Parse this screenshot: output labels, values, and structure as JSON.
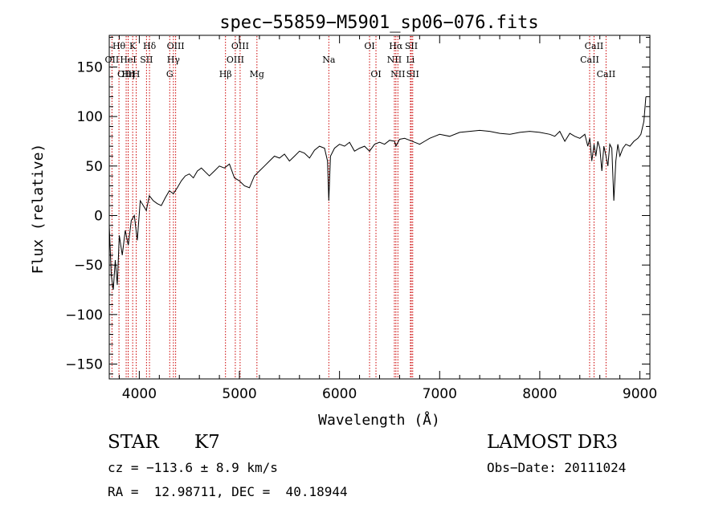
{
  "chart_data": {
    "type": "line",
    "title": "spec−55859−M5901_sp06−076.fits",
    "xlabel": "Wavelength (Å)",
    "ylabel": "Flux (relative)",
    "xlim": [
      3700,
      9100
    ],
    "ylim": [
      -165,
      182
    ],
    "xticks": [
      4000,
      5000,
      6000,
      7000,
      8000,
      9000
    ],
    "xticklabels": [
      "4000",
      "5000",
      "6000",
      "7000",
      "8000",
      "9000"
    ],
    "yticks": [
      -150,
      -100,
      -50,
      0,
      50,
      100,
      150
    ],
    "yticklabels": [
      "−150",
      "−100",
      "−50",
      "0",
      "50",
      "100",
      "150"
    ],
    "series": [
      {
        "name": "flux",
        "x": [
          3700,
          3720,
          3740,
          3760,
          3780,
          3800,
          3830,
          3860,
          3890,
          3920,
          3950,
          3980,
          4010,
          4040,
          4070,
          4100,
          4140,
          4180,
          4220,
          4260,
          4300,
          4340,
          4380,
          4420,
          4460,
          4500,
          4540,
          4580,
          4620,
          4660,
          4700,
          4750,
          4800,
          4850,
          4900,
          4950,
          5000,
          5050,
          5100,
          5150,
          5200,
          5250,
          5300,
          5350,
          5400,
          5450,
          5500,
          5550,
          5600,
          5650,
          5700,
          5750,
          5800,
          5850,
          5880,
          5893,
          5910,
          5950,
          6000,
          6050,
          6100,
          6150,
          6200,
          6250,
          6300,
          6350,
          6400,
          6450,
          6500,
          6550,
          6563,
          6600,
          6650,
          6700,
          6750,
          6800,
          6850,
          6900,
          6950,
          7000,
          7100,
          7200,
          7300,
          7400,
          7500,
          7600,
          7700,
          7800,
          7900,
          8000,
          8100,
          8150,
          8200,
          8250,
          8300,
          8350,
          8400,
          8450,
          8480,
          8500,
          8520,
          8542,
          8560,
          8580,
          8600,
          8620,
          8640,
          8662,
          8680,
          8700,
          8720,
          8740,
          8760,
          8780,
          8800,
          8830,
          8860,
          8900,
          8940,
          8980,
          9010,
          9040,
          9060
        ],
        "y": [
          -10,
          -60,
          -75,
          -45,
          -70,
          -20,
          -40,
          -15,
          -30,
          -5,
          0,
          -25,
          15,
          10,
          5,
          20,
          15,
          12,
          10,
          18,
          25,
          22,
          28,
          35,
          40,
          42,
          38,
          45,
          48,
          44,
          40,
          45,
          50,
          48,
          52,
          38,
          35,
          30,
          28,
          40,
          45,
          50,
          55,
          60,
          58,
          62,
          55,
          60,
          65,
          63,
          58,
          66,
          70,
          68,
          55,
          15,
          60,
          68,
          72,
          70,
          74,
          65,
          68,
          70,
          65,
          72,
          74,
          72,
          76,
          75,
          70,
          77,
          78,
          76,
          74,
          72,
          75,
          78,
          80,
          82,
          80,
          84,
          85,
          86,
          85,
          83,
          82,
          84,
          85,
          84,
          82,
          80,
          85,
          75,
          83,
          80,
          78,
          82,
          70,
          78,
          55,
          72,
          60,
          75,
          68,
          45,
          70,
          60,
          50,
          72,
          68,
          15,
          55,
          72,
          60,
          68,
          72,
          70,
          75,
          78,
          82,
          95,
          120
        ]
      }
    ],
    "line_annotations": [
      {
        "label": "Hθ",
        "wavelength": 3797,
        "row": 1
      },
      {
        "label": "OII",
        "wavelength": 3727,
        "row": 2
      },
      {
        "label": "OIII",
        "wavelength": 3869,
        "row": 3
      },
      {
        "label": "K",
        "wavelength": 3934,
        "row": 1
      },
      {
        "label": "Hη",
        "wavelength": 3889,
        "row": 3
      },
      {
        "label": "HeI",
        "wavelength": 3889,
        "row": 2
      },
      {
        "label": "H",
        "wavelength": 3969,
        "row": 3
      },
      {
        "label": "SII",
        "wavelength": 4072,
        "row": 2
      },
      {
        "label": "Hδ",
        "wavelength": 4102,
        "row": 1
      },
      {
        "label": "OIII",
        "wavelength": 4363,
        "row": 1
      },
      {
        "label": "Hγ",
        "wavelength": 4341,
        "row": 2
      },
      {
        "label": "G",
        "wavelength": 4304,
        "row": 3
      },
      {
        "label": "Hβ",
        "wavelength": 4861,
        "row": 3
      },
      {
        "label": "OIII",
        "wavelength": 5007,
        "row": 1
      },
      {
        "label": "OIII",
        "wavelength": 4959,
        "row": 2
      },
      {
        "label": "Mg",
        "wavelength": 5175,
        "row": 3
      },
      {
        "label": "Na",
        "wavelength": 5893,
        "row": 2
      },
      {
        "label": "OI",
        "wavelength": 6300,
        "row": 1
      },
      {
        "label": "OI",
        "wavelength": 6364,
        "row": 3
      },
      {
        "label": "Hα",
        "wavelength": 6563,
        "row": 1
      },
      {
        "label": "NII",
        "wavelength": 6548,
        "row": 2
      },
      {
        "label": "NII",
        "wavelength": 6583,
        "row": 3
      },
      {
        "label": "SII",
        "wavelength": 6717,
        "row": 1
      },
      {
        "label": "Li",
        "wavelength": 6708,
        "row": 2
      },
      {
        "label": "SII",
        "wavelength": 6731,
        "row": 3
      },
      {
        "label": "CaII",
        "wavelength": 8542,
        "row": 1
      },
      {
        "label": "CaII",
        "wavelength": 8498,
        "row": 2
      },
      {
        "label": "CaII",
        "wavelength": 8662,
        "row": 3
      }
    ],
    "line_color": "#000000",
    "marker_color": "#cc0000"
  },
  "info": {
    "object_class": "STAR",
    "subclass": "K7",
    "survey": "LAMOST DR3",
    "cz": "cz = −113.6 ± 8.9 km/s",
    "obs_date": "Obs−Date: 20111024",
    "coords": "RA =  12.98711, DEC =  40.18944"
  }
}
